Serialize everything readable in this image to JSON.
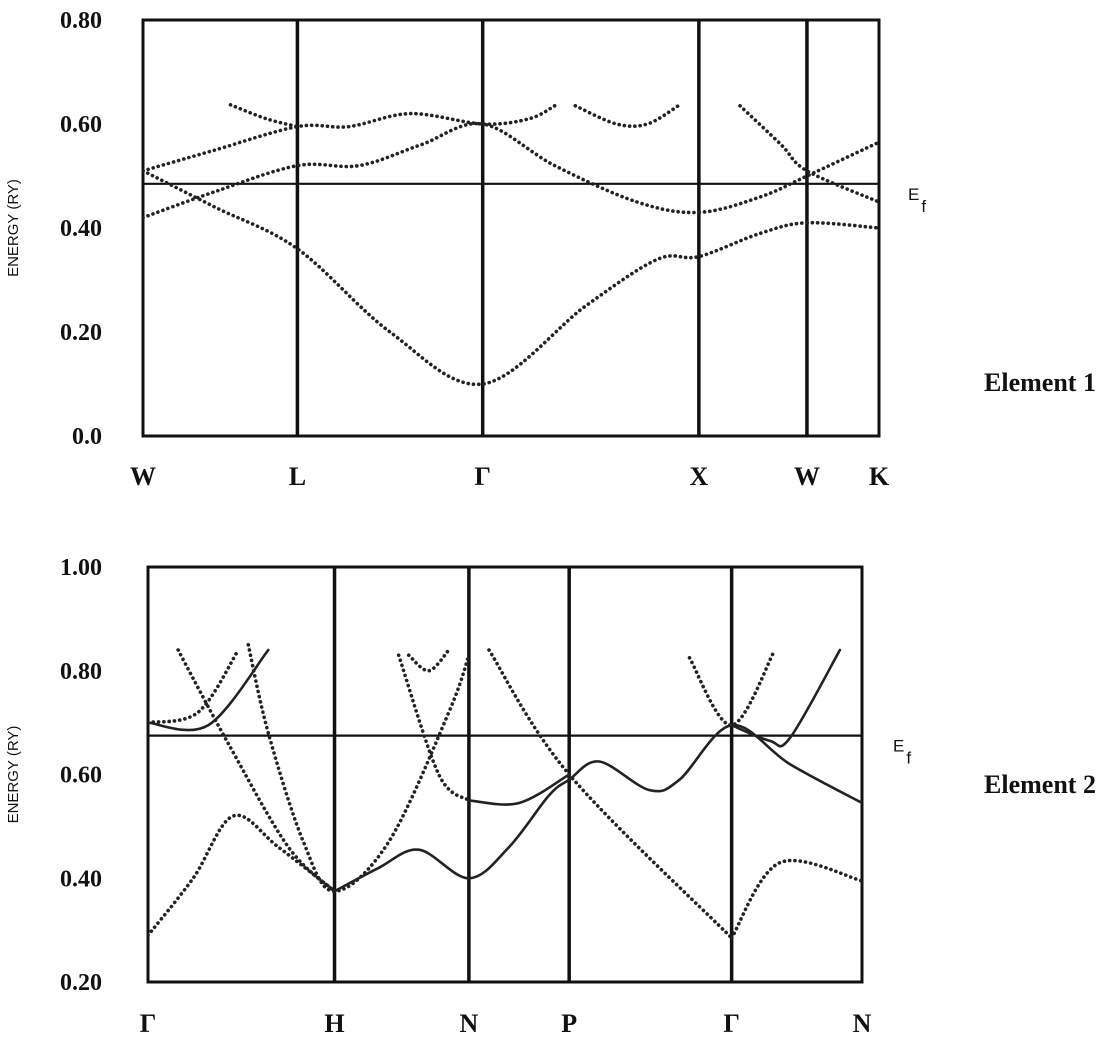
{
  "chart_data": [
    {
      "type": "line",
      "label": "Element 1",
      "ylabel": "ENERGY (RY)",
      "ylim": [
        0.0,
        0.8
      ],
      "yticks": [
        "0.80",
        "0.60",
        "0.40",
        "0.20",
        "0.0"
      ],
      "ytick_values": [
        0.8,
        0.6,
        0.4,
        0.2,
        0.0
      ],
      "k_points": [
        {
          "label": "W",
          "x": 0
        },
        {
          "label": "L",
          "x": 1.5
        },
        {
          "label": "Γ",
          "x": 3.3
        },
        {
          "label": "X",
          "x": 5.4
        },
        {
          "label": "W",
          "x": 6.45
        },
        {
          "label": "K",
          "x": 7.15
        }
      ],
      "xlim": [
        0,
        7.15
      ],
      "fermi_energy": 0.485,
      "fermi_label": "E",
      "fermi_sub": "f",
      "series": [
        {
          "style": "dotted",
          "points": [
            [
              0,
              0.51
            ],
            [
              0.7,
              0.44
            ],
            [
              1.5,
              0.36
            ],
            [
              2.4,
              0.2
            ],
            [
              3.3,
              0.1
            ],
            [
              4.3,
              0.25
            ],
            [
              5.0,
              0.34
            ],
            [
              5.4,
              0.345
            ],
            [
              6.0,
              0.39
            ],
            [
              6.45,
              0.41
            ],
            [
              7.15,
              0.4
            ]
          ]
        },
        {
          "style": "dotted",
          "points": [
            [
              0,
              0.42
            ],
            [
              0.7,
              0.47
            ],
            [
              1.5,
              0.52
            ],
            [
              2.1,
              0.52
            ],
            [
              2.7,
              0.56
            ],
            [
              3.3,
              0.6
            ],
            [
              4.0,
              0.52
            ],
            [
              4.8,
              0.45
            ],
            [
              5.4,
              0.43
            ],
            [
              6.0,
              0.46
            ],
            [
              6.45,
              0.5
            ],
            [
              7.15,
              0.565
            ]
          ]
        },
        {
          "style": "dotted",
          "points": [
            [
              0,
              0.51
            ],
            [
              0.7,
              0.55
            ],
            [
              1.5,
              0.595
            ],
            [
              2.0,
              0.595
            ],
            [
              2.6,
              0.62
            ],
            [
              3.3,
              0.6
            ],
            [
              3.75,
              0.61
            ],
            [
              4.0,
              0.635
            ]
          ]
        },
        {
          "style": "dotted",
          "points": [
            [
              0.85,
              0.637
            ],
            [
              1.2,
              0.61
            ],
            [
              1.5,
              0.595
            ]
          ]
        },
        {
          "style": "dotted",
          "points": [
            [
              4.2,
              0.635
            ],
            [
              4.6,
              0.6
            ],
            [
              4.9,
              0.6
            ],
            [
              5.2,
              0.635
            ]
          ]
        },
        {
          "style": "dotted",
          "points": [
            [
              5.8,
              0.635
            ],
            [
              6.2,
              0.56
            ],
            [
              6.45,
              0.51
            ],
            [
              7.15,
              0.45
            ]
          ]
        }
      ]
    },
    {
      "type": "line",
      "label": "Element 2",
      "ylabel": "ENERGY (RY)",
      "ylim": [
        0.2,
        1.0
      ],
      "yticks": [
        "1.00",
        "0.80",
        "0.60",
        "0.40",
        "0.20"
      ],
      "ytick_values": [
        1.0,
        0.8,
        0.6,
        0.4,
        0.2
      ],
      "k_points": [
        {
          "label": "Γ",
          "x": 0
        },
        {
          "label": "H",
          "x": 1.86
        },
        {
          "label": "N",
          "x": 3.2
        },
        {
          "label": "P",
          "x": 4.2
        },
        {
          "label": "Γ",
          "x": 5.82
        },
        {
          "label": "N",
          "x": 7.12
        }
      ],
      "xlim": [
        0,
        7.12
      ],
      "fermi_energy": 0.675,
      "fermi_label": "E",
      "fermi_sub": "f",
      "series": [
        {
          "style": "dotted",
          "points": [
            [
              0,
              0.29
            ],
            [
              0.45,
              0.4
            ],
            [
              0.85,
              0.52
            ],
            [
              1.3,
              0.46
            ],
            [
              1.86,
              0.375
            ]
          ]
        },
        {
          "style": "solid",
          "points": [
            [
              1.86,
              0.375
            ],
            [
              2.3,
              0.42
            ],
            [
              2.7,
              0.455
            ],
            [
              3.2,
              0.4
            ],
            [
              3.6,
              0.46
            ],
            [
              4.0,
              0.56
            ],
            [
              4.2,
              0.59
            ],
            [
              4.5,
              0.625
            ],
            [
              5.0,
              0.57
            ],
            [
              5.3,
              0.59
            ],
            [
              5.82,
              0.695
            ],
            [
              6.4,
              0.62
            ],
            [
              7.12,
              0.545
            ]
          ]
        },
        {
          "style": "dotted",
          "points": [
            [
              0.3,
              0.84
            ],
            [
              0.8,
              0.66
            ],
            [
              1.4,
              0.46
            ],
            [
              1.86,
              0.375
            ]
          ]
        },
        {
          "style": "dotted",
          "points": [
            [
              0,
              0.7
            ],
            [
              0.5,
              0.72
            ],
            [
              0.9,
              0.84
            ]
          ]
        },
        {
          "style": "dotted",
          "points": [
            [
              1.0,
              0.85
            ],
            [
              1.2,
              0.68
            ],
            [
              1.55,
              0.47
            ],
            [
              1.86,
              0.375
            ],
            [
              2.4,
              0.47
            ],
            [
              3.0,
              0.72
            ],
            [
              3.2,
              0.83
            ]
          ]
        },
        {
          "style": "dotted",
          "points": [
            [
              2.6,
              0.83
            ],
            [
              2.8,
              0.8
            ],
            [
              3.0,
              0.84
            ]
          ]
        },
        {
          "style": "dotted",
          "points": [
            [
              2.5,
              0.83
            ],
            [
              2.9,
              0.6
            ],
            [
              3.2,
              0.55
            ]
          ]
        },
        {
          "style": "solid",
          "points": [
            [
              3.2,
              0.55
            ],
            [
              3.7,
              0.545
            ],
            [
              4.2,
              0.6
            ]
          ]
        },
        {
          "style": "dotted",
          "points": [
            [
              3.4,
              0.84
            ],
            [
              4.2,
              0.6
            ],
            [
              5.82,
              0.285
            ]
          ]
        },
        {
          "style": "dotted",
          "points": [
            [
              5.82,
              0.285
            ],
            [
              6.3,
              0.43
            ],
            [
              7.12,
              0.395
            ]
          ]
        },
        {
          "style": "dotted",
          "points": [
            [
              5.4,
              0.825
            ],
            [
              5.82,
              0.695
            ],
            [
              6.25,
              0.84
            ]
          ]
        },
        {
          "style": "solid",
          "points": [
            [
              5.82,
              0.695
            ],
            [
              6.2,
              0.665
            ],
            [
              6.4,
              0.67
            ],
            [
              6.9,
              0.84
            ]
          ]
        },
        {
          "style": "solid",
          "points": [
            [
              0,
              0.7
            ],
            [
              0.6,
              0.695
            ],
            [
              1.2,
              0.84
            ]
          ]
        }
      ]
    }
  ],
  "labels": {
    "element1": "Element 1",
    "element2": "Element 2"
  }
}
